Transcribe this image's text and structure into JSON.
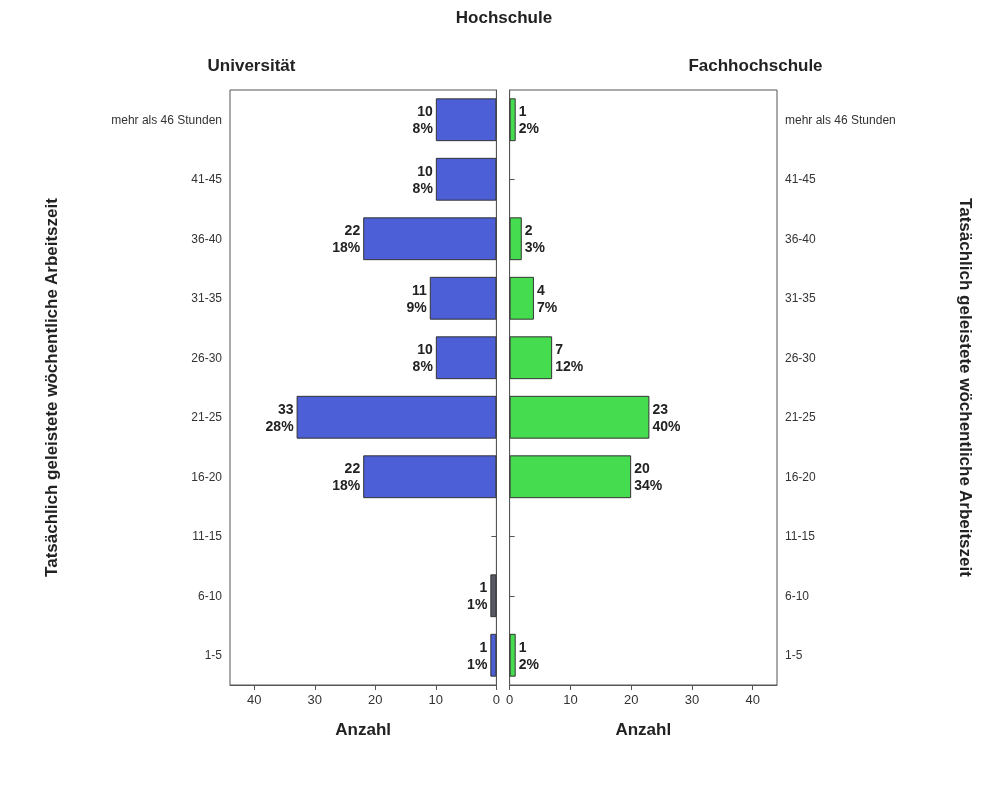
{
  "chart_data": [
    {
      "type": "bar",
      "orientation": "horizontal",
      "title": "Hochschule",
      "subtitle": "Universität",
      "xlabel": "Anzahl",
      "ylabel": "Tatsächlich geleistete wöchentliche Arbeitszeit",
      "categories": [
        "mehr als 46 Stunden",
        "41-45",
        "36-40",
        "31-35",
        "26-30",
        "21-25",
        "16-20",
        "11-15",
        "6-10",
        "1-5"
      ],
      "values": [
        10,
        10,
        22,
        11,
        10,
        33,
        22,
        null,
        1,
        1
      ],
      "colors": [
        "#4d5fd6",
        "#4d5fd6",
        "#4d5fd6",
        "#4d5fd6",
        "#4d5fd6",
        "#4d5fd6",
        "#4d5fd6",
        "#4d5fd6",
        "#5a5a66",
        "#4d5fd6"
      ],
      "value_labels": [
        "10\n8%",
        "10\n8%",
        "22\n18%",
        "11\n9%",
        "10\n8%",
        "33\n28%",
        "22\n18%",
        null,
        "1\n1%",
        "1\n1%"
      ],
      "xlim": [
        44,
        0
      ],
      "xticks": [
        40,
        30,
        20,
        10,
        0
      ],
      "grid": false
    },
    {
      "type": "bar",
      "orientation": "horizontal",
      "subtitle": "Fachhochschule",
      "xlabel": "Anzahl",
      "ylabel": "Tatsächlich geleistete wöchentliche Arbeitszeit",
      "categories": [
        "mehr als 46 Stunden",
        "41-45",
        "36-40",
        "31-35",
        "26-30",
        "21-25",
        "16-20",
        "11-15",
        "6-10",
        "1-5"
      ],
      "values": [
        1,
        null,
        2,
        4,
        7,
        23,
        20,
        null,
        null,
        1
      ],
      "color": "#46dc50",
      "value_labels": [
        "1\n2%",
        null,
        "2\n3%",
        "4\n7%",
        "7\n12%",
        "23\n40%",
        "20\n34%",
        null,
        null,
        "1\n2%"
      ],
      "xlim": [
        0,
        44
      ],
      "xticks": [
        0,
        10,
        20,
        30,
        40
      ],
      "grid": false
    }
  ]
}
